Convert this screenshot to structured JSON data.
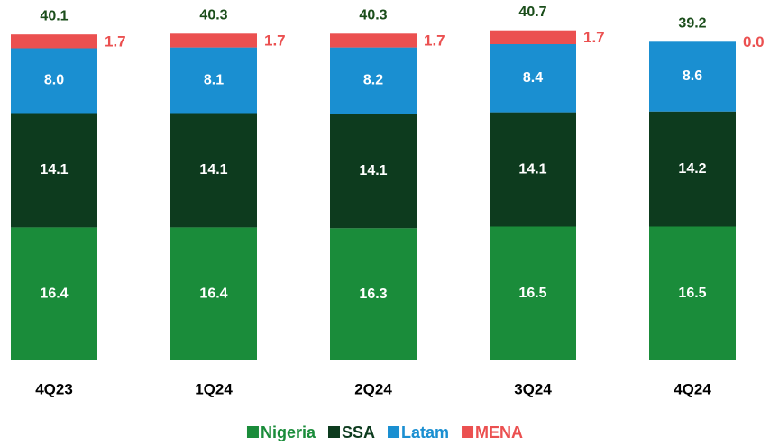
{
  "chart_data": {
    "type": "stacked_bar",
    "categories": [
      "4Q23",
      "1Q24",
      "2Q24",
      "3Q24",
      "4Q24"
    ],
    "series": [
      {
        "name": "Nigeria",
        "color": "#1a8c3a",
        "values": [
          16.4,
          16.4,
          16.3,
          16.5,
          16.5
        ]
      },
      {
        "name": "SSA",
        "color": "#0d3b1e",
        "values": [
          14.1,
          14.1,
          14.1,
          14.1,
          14.2
        ]
      },
      {
        "name": "Latam",
        "color": "#1a8fd1",
        "values": [
          8.0,
          8.1,
          8.2,
          8.4,
          8.6
        ],
        "value_labels": [
          "8.0",
          "8.1",
          "8.2",
          "8.4",
          "8.6"
        ]
      },
      {
        "name": "MENA",
        "color": "#eb5050",
        "values": [
          1.7,
          1.7,
          1.7,
          1.7,
          0.0
        ],
        "value_labels": [
          "1.7",
          "1.7",
          "1.7",
          "1.7",
          "0.0"
        ]
      }
    ],
    "totals": [
      40.1,
      40.3,
      40.3,
      40.7,
      39.2
    ],
    "totals_color": "#1a4d1a",
    "legend": "bottom"
  }
}
